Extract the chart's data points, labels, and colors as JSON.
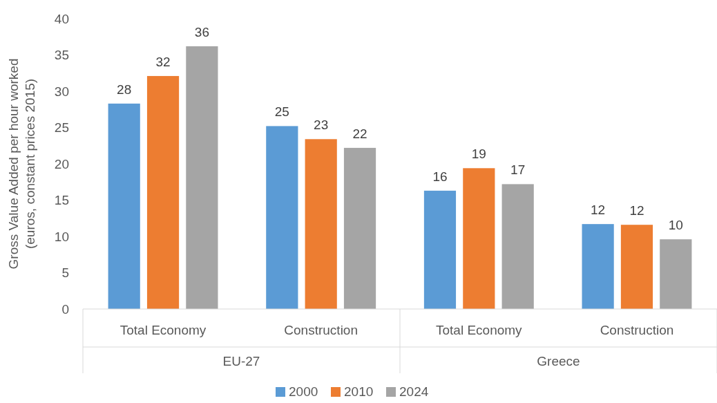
{
  "chart_data": {
    "type": "bar",
    "ylabel": "Gross Value Added per hour worked (euros, constant prices 2015)",
    "categories": [
      "Total Economy",
      "Construction",
      "Total Economy",
      "Construction"
    ],
    "annotations": [
      "EU-27",
      "Greece"
    ],
    "series": [
      {
        "name": "2000",
        "color": "#5b9bd5",
        "values": [
          28.3,
          25.2,
          16.3,
          11.7
        ],
        "value_labels": [
          "28",
          "25",
          "16",
          "12"
        ]
      },
      {
        "name": "2010",
        "color": "#ed7d31",
        "values": [
          32.1,
          23.4,
          19.4,
          11.6
        ],
        "value_labels": [
          "32",
          "23",
          "19",
          "12"
        ]
      },
      {
        "name": "2024",
        "color": "#a5a5a5",
        "values": [
          36.2,
          22.2,
          17.2,
          9.6
        ],
        "value_labels": [
          "36",
          "22",
          "17",
          "10"
        ]
      }
    ],
    "ylim": [
      0,
      40
    ],
    "yticks": [
      0,
      5,
      10,
      15,
      20,
      25,
      30,
      35,
      40
    ],
    "grid": false,
    "legend": "bottom"
  }
}
